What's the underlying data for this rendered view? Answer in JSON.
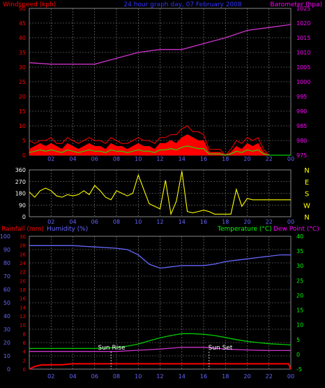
{
  "header": {
    "left_title": "Windspeed (kph)",
    "center_title": "24 hour graph day, 07 February 2008",
    "right_title": "Barometer (hpa)"
  },
  "colors": {
    "windspeed": "#ff0000",
    "gust": "#00ff00",
    "gust_inner": "#ffffff",
    "barometer": "#cc33cc",
    "direction": "#ffff00",
    "humidity": "#6666ff",
    "temperature": "#00cc00",
    "dewpoint": "#cc33cc",
    "rainfall": "#ff0000",
    "axis_left": "#ff0000",
    "axis_right": "#ff00ff",
    "axis_green": "#00ff00",
    "axis_blue": "#6666ff",
    "grid": "#888888",
    "title_blue": "#3333ff"
  },
  "x_ticks": [
    "02",
    "04",
    "06",
    "08",
    "10",
    "12",
    "14",
    "16",
    "18",
    "20",
    "22",
    "00"
  ],
  "panel_top": {
    "left_ticks": [
      "0",
      "5",
      "10",
      "15",
      "20",
      "25",
      "30",
      "35",
      "40",
      "45",
      "50"
    ],
    "right_ticks": [
      "975",
      "980",
      "985",
      "990",
      "995",
      "1000",
      "1005",
      "1010",
      "1015",
      "1020",
      "1025"
    ]
  },
  "panel_mid": {
    "left_ticks": [
      "0",
      "90",
      "180",
      "270",
      "360"
    ],
    "right_labels": [
      "N",
      "W",
      "S",
      "E",
      "N"
    ]
  },
  "panel_bottom": {
    "labels": {
      "rainfall": "Rainfall (mm)",
      "humidity": "Humidity (%)",
      "temperature": "Temperature (°C)",
      "dewpoint": "Dew Point (°C)"
    },
    "humidity_ticks": [
      "0",
      "10",
      "20",
      "30",
      "40",
      "50",
      "60",
      "70",
      "80",
      "90",
      "100"
    ],
    "rain_ticks": [
      "0",
      "2",
      "4",
      "6",
      "8",
      "10",
      "12",
      "14",
      "16",
      "18",
      "20",
      "22",
      "24",
      "26",
      "28",
      "30"
    ],
    "temp_ticks": [
      "-5",
      "0",
      "5",
      "10",
      "15",
      "20",
      "25",
      "30",
      "35",
      "40"
    ],
    "sun_rise": "Sun Rise",
    "sun_set": "Sun Set"
  },
  "chart_data": [
    {
      "type": "line",
      "x_unit": "hour",
      "xlim": [
        0,
        24
      ],
      "series": [
        {
          "name": "Barometer",
          "axis": "right",
          "ylim": [
            975,
            1025
          ],
          "x": [
            0,
            2,
            4,
            6,
            8,
            10,
            12,
            14,
            16,
            18,
            20,
            22,
            24
          ],
          "values": [
            1006.5,
            1006,
            1006,
            1006,
            1008,
            1010,
            1011,
            1011,
            1013,
            1015,
            1017.5,
            1018.5,
            1019.5
          ]
        }
      ],
      "windspeed_profile": {
        "x": [
          0,
          0.5,
          1,
          1.5,
          2,
          2.5,
          3,
          3.5,
          4,
          4.5,
          5,
          5.5,
          6,
          6.5,
          7,
          7.5,
          8,
          8.5,
          9,
          9.5,
          10,
          10.5,
          11,
          11.5,
          12,
          12.5,
          13,
          13.5,
          14,
          14.5,
          15,
          15.5,
          16,
          16.5,
          17,
          17.5,
          18,
          18.5,
          19,
          19.5,
          20,
          20.5,
          21,
          21.5,
          22,
          22.5,
          23,
          23.5,
          24
        ],
        "wind": [
          2,
          3,
          4,
          3,
          4,
          3,
          2,
          4,
          3,
          2,
          3,
          4,
          3,
          3,
          2,
          4,
          3,
          3,
          2,
          3,
          4,
          3,
          3,
          2,
          4,
          4,
          5,
          4,
          6,
          7,
          6,
          5,
          5,
          1,
          1,
          1,
          0,
          1,
          3,
          2,
          4,
          3,
          4,
          1,
          0,
          0,
          0,
          0,
          0
        ],
        "gust": [
          5,
          4,
          5,
          5,
          6,
          4,
          4,
          6,
          5,
          4,
          5,
          6,
          5,
          5,
          4,
          6,
          5,
          4,
          4,
          5,
          6,
          5,
          5,
          4,
          6,
          6,
          7,
          7,
          9,
          10,
          8,
          8,
          7,
          2,
          2,
          2,
          0,
          2,
          5,
          4,
          6,
          5,
          6,
          2,
          0,
          0,
          0,
          0,
          0
        ]
      }
    },
    {
      "type": "line",
      "x_unit": "hour",
      "xlim": [
        0,
        24
      ],
      "ylim": [
        0,
        360
      ],
      "series": [
        {
          "name": "Wind Direction",
          "x": [
            0,
            0.5,
            1,
            1.5,
            2,
            2.5,
            3,
            3.5,
            4,
            4.5,
            5,
            5.5,
            6,
            6.5,
            7,
            7.5,
            8,
            8.5,
            9,
            9.5,
            10,
            10.5,
            11,
            11.5,
            12,
            12.5,
            13,
            13.5,
            14,
            14.5,
            15,
            15.5,
            16,
            16.5,
            17,
            17.5,
            18,
            18.5,
            19,
            19.5,
            20,
            20.5,
            21,
            21.5,
            22,
            22.5,
            23,
            23.5,
            24
          ],
          "values": [
            190,
            150,
            200,
            220,
            200,
            160,
            150,
            170,
            160,
            170,
            200,
            170,
            240,
            200,
            150,
            130,
            200,
            180,
            160,
            180,
            320,
            210,
            100,
            80,
            60,
            280,
            20,
            120,
            350,
            40,
            30,
            40,
            50,
            40,
            20,
            20,
            20,
            20,
            210,
            80,
            140,
            130,
            130,
            130,
            130,
            130,
            130,
            130,
            130
          ]
        }
      ]
    },
    {
      "type": "line",
      "x_unit": "hour",
      "xlim": [
        0,
        24
      ],
      "series": [
        {
          "name": "Humidity",
          "axis": "humidity",
          "ylim": [
            0,
            100
          ],
          "x": [
            0,
            2,
            4,
            6,
            8,
            9,
            10,
            11,
            12,
            13,
            14,
            15,
            16,
            17,
            18,
            19,
            20,
            21,
            22,
            23,
            24
          ],
          "values": [
            93,
            93,
            93,
            92,
            91,
            90,
            86,
            79,
            76,
            77,
            78,
            78,
            78,
            79,
            81,
            82,
            83,
            84,
            85,
            86,
            86
          ]
        },
        {
          "name": "Temperature",
          "axis": "temp",
          "ylim": [
            -5,
            40
          ],
          "x": [
            0,
            2,
            4,
            6,
            8,
            9,
            10,
            11,
            12,
            13,
            14,
            15,
            16,
            17,
            18,
            19,
            20,
            21,
            22,
            23,
            24
          ],
          "values": [
            2,
            2,
            2,
            2,
            2.3,
            2.8,
            3.5,
            4.6,
            5.6,
            6.4,
            7.0,
            7.0,
            6.8,
            6.4,
            5.7,
            5.0,
            4.4,
            4.0,
            3.6,
            3.4,
            3.2
          ]
        },
        {
          "name": "Dew Point",
          "axis": "temp",
          "ylim": [
            -5,
            40
          ],
          "x": [
            0,
            2,
            4,
            6,
            8,
            10,
            12,
            14,
            16,
            18,
            20,
            22,
            24
          ],
          "values": [
            1,
            1,
            1,
            1,
            1,
            1.4,
            1.8,
            2.4,
            2.4,
            1.8,
            1.5,
            1.3,
            1.3
          ]
        },
        {
          "name": "Rainfall",
          "axis": "rain",
          "ylim": [
            0,
            30
          ],
          "x": [
            0,
            0.5,
            1,
            2,
            3,
            4,
            6,
            8,
            10,
            12,
            14,
            16,
            18,
            20,
            22,
            23.8,
            24
          ],
          "values": [
            0,
            0.6,
            0.9,
            1,
            1,
            1.2,
            1.2,
            1.2,
            1.2,
            1.2,
            1.2,
            1.2,
            1.2,
            1.2,
            1.2,
            1.2,
            0
          ]
        }
      ],
      "markers": [
        {
          "label": "Sun Rise",
          "x": 7.5
        },
        {
          "label": "Sun Set",
          "x": 16.5
        }
      ]
    }
  ]
}
